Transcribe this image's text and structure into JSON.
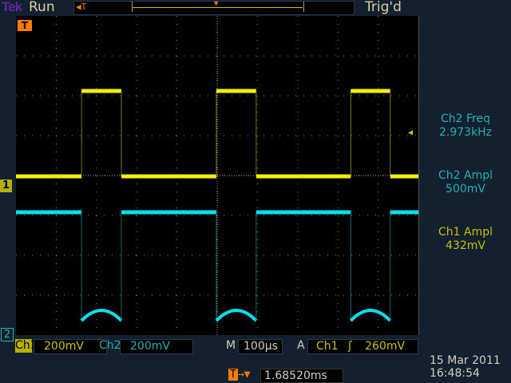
{
  "header": {
    "brand": "Tek",
    "state": "Run",
    "trigger_status": "Trig'd"
  },
  "measurements": [
    {
      "label": "Ch2 Freq",
      "value": "2.973kHz",
      "color": "#22b0b0"
    },
    {
      "label": "Ch2 Ampl",
      "value": "500mV",
      "color": "#22b0b0"
    },
    {
      "label": "Ch1 Ampl",
      "value": "432mV",
      "color": "#c8c000"
    }
  ],
  "footer": {
    "ch1_label": "Ch1",
    "ch1_scale": "200mV",
    "ch2_label": "Ch2",
    "ch2_scale": "200mV",
    "timebase_label": "M",
    "timebase": "100µs",
    "trigger_label": "A",
    "trigger_source": "Ch1",
    "trigger_slope_icon": "rising-edge",
    "trigger_level": "260mV",
    "trigger_position": "1.68520ms",
    "date": "15 Mar  2011",
    "time": "16:48:54"
  },
  "markers": {
    "ch1": "1",
    "ch2": "2",
    "trigger": "T"
  },
  "chart_data": {
    "type": "line",
    "xlabel": "",
    "ylabel": "",
    "x_units": "µs",
    "y_units": "mV",
    "xlim": [
      -500,
      500
    ],
    "x_divisions": 10,
    "y_divisions": 8,
    "grid": true,
    "series": [
      {
        "channel": "Ch1",
        "color": "#f0f000",
        "low_mV": 48,
        "high_mV": 476,
        "rising_edges_us": [
          -337,
          -2,
          332
        ],
        "falling_edges_us": [
          -238,
          97,
          430
        ]
      },
      {
        "channel": "Ch2",
        "color": "#00e0f0",
        "baseline_mV": 616,
        "trough_edge_mV": 72,
        "trough_peak_mV": 124,
        "falling_edges_us": [
          -337,
          -2,
          332
        ],
        "rising_edges_us": [
          -238,
          97,
          430
        ]
      }
    ]
  }
}
